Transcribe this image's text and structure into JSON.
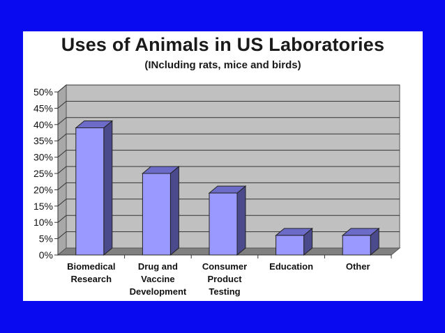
{
  "chart_data": {
    "type": "bar",
    "title": "Uses of Animals in US Laboratories",
    "subtitle": "(INcluding rats, mice and birds)",
    "categories": [
      [
        "Biomedical",
        "Research"
      ],
      [
        "Drug and",
        "Vaccine",
        "Development"
      ],
      [
        "Consumer",
        "Product",
        "Testing"
      ],
      [
        "Education"
      ],
      [
        "Other"
      ]
    ],
    "values": [
      39,
      25,
      19,
      6,
      6
    ],
    "ylim": [
      0,
      50
    ],
    "yticks": [
      "0%",
      "5%",
      "10%",
      "15%",
      "20%",
      "25%",
      "30%",
      "35%",
      "40%",
      "45%",
      "50%"
    ],
    "grid": true,
    "bar_color": "#9999ff",
    "bar_side_color": "#4a4a8c",
    "bar_top_color": "#6c6cc8",
    "wall_color": "#c0c0c0",
    "floor_color": "#808080"
  }
}
